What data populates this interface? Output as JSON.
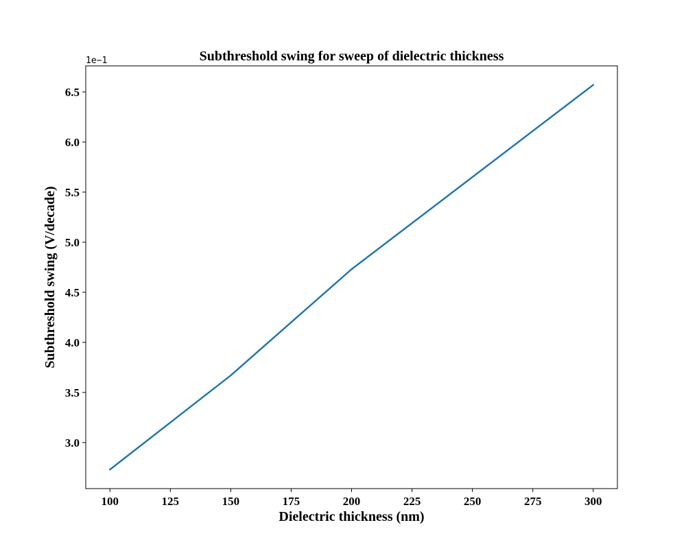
{
  "chart_data": {
    "type": "line",
    "title": "Subthreshold swing for sweep of dielectric thickness",
    "xlabel": "Dielectric thickness (nm)",
    "ylabel": "Subthreshold swing (V/decade)",
    "y_offset_text": "1e−1",
    "x": [
      100,
      150,
      200,
      300
    ],
    "series": [
      {
        "values": [
          2.73,
          3.67,
          4.73,
          6.57
        ],
        "color": "#1f77b4"
      }
    ],
    "xlim": [
      90,
      310
    ],
    "ylim": [
      2.54,
      6.76
    ],
    "xticks": [
      100,
      125,
      150,
      175,
      200,
      225,
      250,
      275,
      300
    ],
    "xtick_labels": [
      "100",
      "125",
      "150",
      "175",
      "200",
      "225",
      "250",
      "275",
      "300"
    ],
    "yticks": [
      3.0,
      3.5,
      4.0,
      4.5,
      5.0,
      5.5,
      6.0,
      6.5
    ],
    "ytick_labels": [
      "3.0",
      "3.5",
      "4.0",
      "4.5",
      "5.0",
      "5.5",
      "6.0",
      "6.5"
    ],
    "grid": false,
    "legend": "none"
  }
}
